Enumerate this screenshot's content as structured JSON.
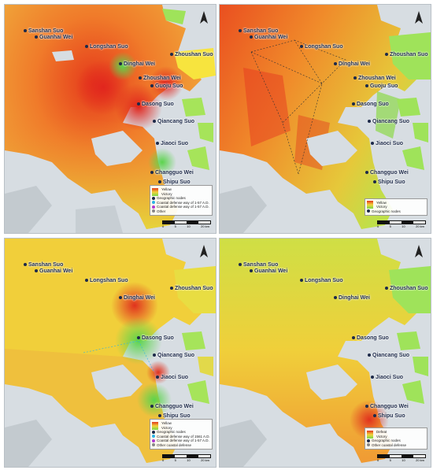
{
  "colors": {
    "sea": "#d7dde2",
    "island_green": "#9fe35a",
    "red": "#e2371b",
    "orange": "#f08a2a",
    "yellow": "#f3cf3a",
    "yellow_green": "#c9e048",
    "green": "#7ad84a"
  },
  "panels": [
    {
      "id": "p1",
      "places": [
        "Sanshan Suo",
        "Guanhai Wei",
        "Longshan Suo",
        "Dinghai Wei",
        "Zhoushan Suo",
        "Zhoushan Wei",
        "Guoju Suo",
        "Dasong Suo",
        "Qiancang Suo",
        "Jiaoci Suo",
        "Changguo Wei",
        "Shipu Suo"
      ],
      "legend": [
        "Yellow",
        "Victory",
        "Geographic nodes",
        "Coastal defense way of 1-57 A.D.",
        "Coastal defense way of 1-57 A.D.",
        "Other"
      ],
      "icon": "none"
    },
    {
      "id": "p2",
      "places": [
        "Sanshan Suo",
        "Guanhai Wei",
        "Longshan Suo",
        "Dinghai Wei",
        "Zhoushan Suo",
        "Zhoushan Wei",
        "Guoju Suo",
        "Dasong Suo",
        "Qiancang Suo",
        "Jiaoci Suo",
        "Changguo Wei",
        "Shipu Suo"
      ],
      "legend": [
        "Yellow",
        "Victory",
        "Geographic nodes"
      ],
      "icon": "none"
    },
    {
      "id": "p3",
      "places": [
        "Sanshan Suo",
        "Guanhai Wei",
        "Longshan Suo",
        "Dinghai Wei",
        "Zhoushan Suo",
        "Dasong Suo",
        "Qiancang Suo",
        "Jiaoci Suo",
        "Changguo Wei",
        "Shipu Suo"
      ],
      "legend": [
        "Yellow",
        "Victory",
        "Geographic nodes",
        "Coastal defense way of 1561 A.D.",
        "Coastal defense way of 1-57 A.D.",
        "Other coastal defense"
      ],
      "icon": "none"
    },
    {
      "id": "p4",
      "places": [
        "Sanshan Suo",
        "Guanhai Wei",
        "Longshan Suo",
        "Dinghai Wei",
        "Zhoushan Suo",
        "Dasong Suo",
        "Qiancang Suo",
        "Jiaoci Suo",
        "Changguo Wei",
        "Shipu Suo"
      ],
      "legend": [
        "Defeat",
        "Victory",
        "Geographic nodes",
        "Other coastal defense"
      ],
      "icon": "none"
    }
  ],
  "scale_ticks": [
    "0",
    "5",
    "10",
    "20 km"
  ]
}
